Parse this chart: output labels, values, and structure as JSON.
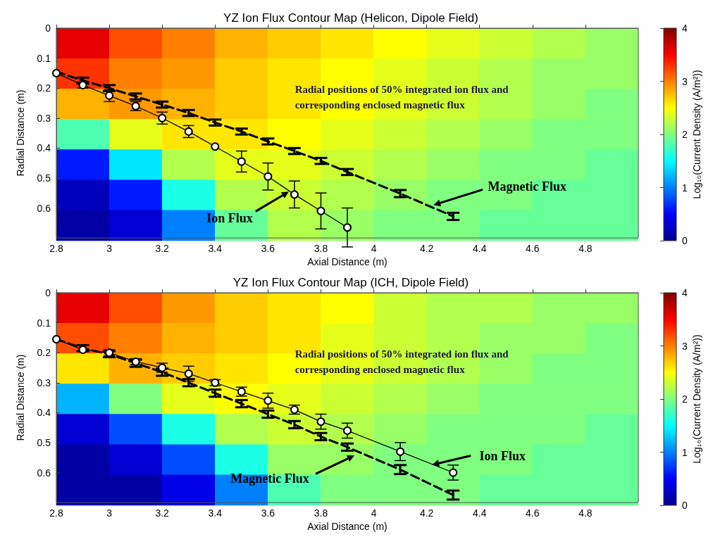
{
  "chart_data": [
    {
      "type": "heatmap",
      "title": "YZ Ion Flux Contour Map (Helicon, Dipole Field)",
      "xlabel": "Axial Distance (m)",
      "ylabel": "Radial Distance (m)",
      "clabel": "Log₁₀(Current Density (A/m²))",
      "xlim": [
        2.8,
        5.0
      ],
      "xticks": [
        2.8,
        3,
        3.2,
        3.4,
        3.6,
        3.8,
        4,
        4.2,
        4.4,
        4.6,
        4.8
      ],
      "ylim": [
        0.7,
        0
      ],
      "yticks": [
        0,
        0.1,
        0.2,
        0.3,
        0.4,
        0.5,
        0.6
      ],
      "clim": [
        0,
        4
      ],
      "cticks": [
        0,
        1,
        2,
        3,
        4
      ],
      "cells": [
        [
          3.6,
          3.2,
          3.0,
          2.8,
          2.7,
          2.6,
          2.5,
          2.4,
          2.3,
          2.2,
          2.1
        ],
        [
          3.3,
          3.0,
          2.9,
          2.7,
          2.6,
          2.5,
          2.4,
          2.3,
          2.2,
          2.1,
          2.1
        ],
        [
          2.8,
          2.9,
          2.8,
          2.7,
          2.6,
          2.5,
          2.4,
          2.3,
          2.2,
          2.1,
          2.0
        ],
        [
          1.8,
          2.4,
          2.6,
          2.6,
          2.5,
          2.4,
          2.3,
          2.2,
          2.1,
          2.0,
          2.0
        ],
        [
          0.6,
          1.4,
          2.2,
          2.4,
          2.4,
          2.3,
          2.2,
          2.1,
          2.0,
          2.0,
          1.9
        ],
        [
          0.2,
          0.6,
          1.6,
          2.2,
          2.3,
          2.2,
          2.1,
          2.0,
          2.0,
          1.9,
          1.9
        ],
        [
          0.1,
          0.3,
          1.0,
          1.9,
          2.2,
          2.1,
          2.0,
          2.0,
          1.9,
          1.9,
          1.9
        ]
      ],
      "annotations": [
        "Radial positions of 50% integrated ion flux and corresponding enclosed magnetic flux"
      ],
      "series": [
        {
          "name": "Ion Flux",
          "type": "line",
          "color": "#000000",
          "marker": "circle",
          "line_style": "solid",
          "x": [
            2.8,
            2.9,
            3.0,
            3.1,
            3.2,
            3.3,
            3.4,
            3.5,
            3.6,
            3.7,
            3.8,
            3.9
          ],
          "values": [
            0.15,
            0.19,
            0.225,
            0.26,
            0.3,
            0.345,
            0.395,
            0.445,
            0.495,
            0.555,
            0.61,
            0.665
          ],
          "errors": [
            null,
            0.01,
            0.02,
            0.015,
            0.02,
            0.02,
            null,
            0.035,
            0.045,
            0.045,
            0.06,
            0.065
          ]
        },
        {
          "name": "Magnetic Flux",
          "type": "line",
          "color": "#000000",
          "marker": "none",
          "line_style": "dashed",
          "x": [
            2.8,
            2.9,
            3.0,
            3.1,
            3.2,
            3.3,
            3.4,
            3.5,
            3.6,
            3.7,
            3.8,
            3.9,
            4.1,
            4.3
          ],
          "values": [
            0.145,
            0.175,
            0.2,
            0.228,
            0.255,
            0.283,
            0.315,
            0.345,
            0.378,
            0.41,
            0.443,
            0.48,
            0.552,
            0.628
          ],
          "errors": [
            null,
            0.01,
            0.01,
            0.01,
            0.01,
            0.01,
            0.01,
            0.01,
            0.01,
            0.01,
            0.01,
            0.01,
            0.012,
            0.012
          ]
        }
      ]
    },
    {
      "type": "heatmap",
      "title": "YZ Ion Flux Contour Map (ICH, Dipole Field)",
      "xlabel": "Axial Distance (m)",
      "ylabel": "Radial Distance (m)",
      "clabel": "Log₁₀(Current Density (A/m²))",
      "xlim": [
        2.8,
        5.0
      ],
      "xticks": [
        2.8,
        3,
        3.2,
        3.4,
        3.6,
        3.8,
        4,
        4.2,
        4.4,
        4.6,
        4.8
      ],
      "ylim": [
        0.7,
        0
      ],
      "yticks": [
        0,
        0.1,
        0.2,
        0.3,
        0.4,
        0.5,
        0.6
      ],
      "clim": [
        0,
        4
      ],
      "cticks": [
        0,
        1,
        2,
        3,
        4
      ],
      "cells": [
        [
          3.6,
          3.2,
          2.9,
          2.7,
          2.6,
          2.5,
          2.3,
          2.2,
          2.2,
          2.1,
          2.1
        ],
        [
          3.2,
          3.0,
          2.8,
          2.7,
          2.6,
          2.4,
          2.3,
          2.2,
          2.1,
          2.1,
          2.0
        ],
        [
          2.6,
          2.8,
          2.7,
          2.6,
          2.5,
          2.4,
          2.3,
          2.2,
          2.1,
          2.0,
          2.0
        ],
        [
          1.2,
          2.0,
          2.4,
          2.5,
          2.4,
          2.3,
          2.2,
          2.1,
          2.0,
          2.0,
          2.0
        ],
        [
          0.3,
          0.8,
          1.6,
          2.2,
          2.3,
          2.2,
          2.1,
          2.0,
          2.0,
          2.0,
          1.9
        ],
        [
          0.1,
          0.3,
          0.8,
          1.6,
          2.1,
          2.1,
          2.0,
          2.0,
          2.0,
          1.9,
          1.9
        ],
        [
          0.1,
          0.1,
          0.4,
          1.0,
          1.8,
          2.0,
          2.0,
          2.0,
          1.9,
          1.9,
          1.9
        ]
      ],
      "annotations": [
        "Radial positions of 50% integrated ion flux and corresponding enclosed magnetic flux"
      ],
      "series": [
        {
          "name": "Ion Flux",
          "type": "line",
          "color": "#000000",
          "marker": "circle",
          "line_style": "solid",
          "x": [
            2.8,
            2.9,
            3.0,
            3.1,
            3.2,
            3.3,
            3.4,
            3.5,
            3.6,
            3.7,
            3.8,
            3.9,
            4.1,
            4.3
          ],
          "values": [
            0.155,
            0.19,
            0.2,
            0.23,
            0.25,
            0.27,
            0.3,
            0.33,
            0.36,
            0.39,
            0.43,
            0.46,
            0.53,
            0.6
          ],
          "errors": [
            null,
            null,
            0.01,
            0.01,
            0.015,
            0.025,
            0.01,
            0.015,
            0.025,
            0.015,
            0.025,
            0.025,
            0.03,
            0.025
          ]
        },
        {
          "name": "Magnetic Flux",
          "type": "line",
          "color": "#000000",
          "marker": "none",
          "line_style": "dashed",
          "x": [
            2.8,
            2.9,
            3.0,
            3.1,
            3.2,
            3.3,
            3.4,
            3.5,
            3.6,
            3.7,
            3.8,
            3.9,
            4.1,
            4.3
          ],
          "values": [
            0.155,
            0.185,
            0.205,
            0.235,
            0.265,
            0.3,
            0.335,
            0.37,
            0.405,
            0.44,
            0.48,
            0.515,
            0.59,
            0.675
          ],
          "errors": [
            null,
            0.01,
            0.01,
            0.012,
            0.012,
            0.012,
            0.012,
            0.012,
            0.012,
            0.012,
            0.012,
            0.012,
            0.015,
            0.015
          ]
        }
      ]
    }
  ]
}
